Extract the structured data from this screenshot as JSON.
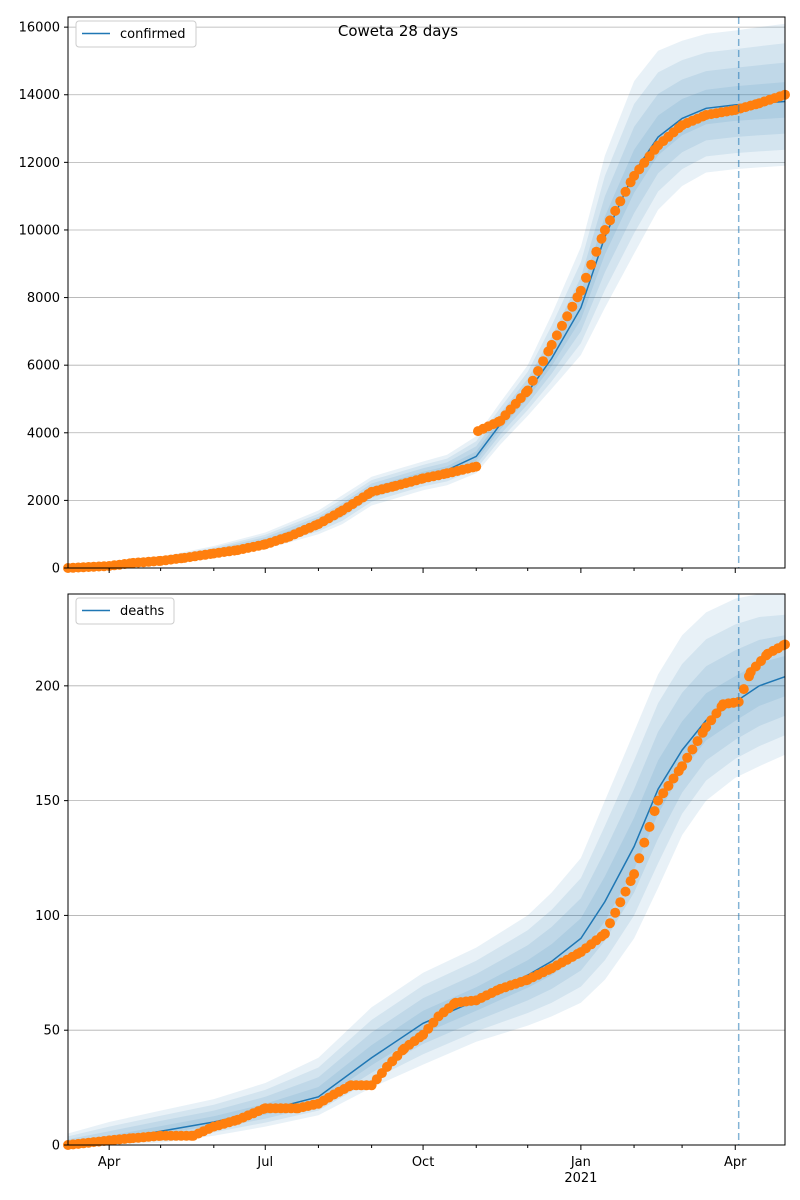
{
  "chart_data": [
    {
      "type": "line",
      "title": "Coweta 28 days",
      "legend": {
        "label": "confirmed",
        "placement": "top-left"
      },
      "ylim": [
        0,
        16300
      ],
      "yticks": [
        0,
        2000,
        4000,
        6000,
        8000,
        10000,
        12000,
        14000,
        16000
      ],
      "grid": "y",
      "forecast_start": "2021-04-03",
      "x_range": [
        "2020-03-08",
        "2021-04-30"
      ],
      "model": {
        "x": [
          "2020-03-08",
          "2020-04-01",
          "2020-05-01",
          "2020-06-01",
          "2020-07-01",
          "2020-08-01",
          "2020-08-15",
          "2020-09-01",
          "2020-10-01",
          "2020-10-15",
          "2020-11-01",
          "2020-11-15",
          "2020-12-01",
          "2020-12-15",
          "2021-01-01",
          "2021-01-15",
          "2021-02-01",
          "2021-02-15",
          "2021-03-01",
          "2021-03-15",
          "2021-04-01",
          "2021-04-15",
          "2021-04-30"
        ],
        "values": [
          0,
          80,
          230,
          480,
          780,
          1330,
          1700,
          2300,
          2750,
          2900,
          3300,
          4250,
          5200,
          6200,
          7700,
          9800,
          11700,
          12750,
          13300,
          13600,
          13700,
          13750,
          13800
        ],
        "band_outer_upper": [
          0,
          120,
          330,
          650,
          1050,
          1700,
          2150,
          2700,
          3150,
          3350,
          3900,
          4900,
          6000,
          7500,
          9500,
          12200,
          14400,
          15300,
          15600,
          15800,
          15900,
          16000,
          16100
        ],
        "band_outer_lower": [
          0,
          40,
          150,
          330,
          560,
          1000,
          1300,
          1850,
          2300,
          2450,
          2800,
          3650,
          4500,
          5300,
          6300,
          7700,
          9300,
          10600,
          11300,
          11700,
          11800,
          11850,
          11900
        ]
      },
      "observed": [
        {
          "x": "2020-03-08",
          "y": 0
        },
        {
          "x": "2020-04-01",
          "y": 60
        },
        {
          "x": "2020-04-15",
          "y": 150
        },
        {
          "x": "2020-05-01",
          "y": 210
        },
        {
          "x": "2020-05-15",
          "y": 300
        },
        {
          "x": "2020-06-01",
          "y": 430
        },
        {
          "x": "2020-06-15",
          "y": 530
        },
        {
          "x": "2020-07-01",
          "y": 700
        },
        {
          "x": "2020-07-15",
          "y": 930
        },
        {
          "x": "2020-08-01",
          "y": 1300
        },
        {
          "x": "2020-08-15",
          "y": 1700
        },
        {
          "x": "2020-09-01",
          "y": 2250
        },
        {
          "x": "2020-09-15",
          "y": 2430
        },
        {
          "x": "2020-10-01",
          "y": 2650
        },
        {
          "x": "2020-10-15",
          "y": 2800
        },
        {
          "x": "2020-11-01",
          "y": 3000
        },
        {
          "x": "2020-11-02",
          "y": 4050
        },
        {
          "x": "2020-11-15",
          "y": 4350
        },
        {
          "x": "2020-12-01",
          "y": 5250
        },
        {
          "x": "2020-12-15",
          "y": 6600
        },
        {
          "x": "2021-01-01",
          "y": 8200
        },
        {
          "x": "2021-01-15",
          "y": 10000
        },
        {
          "x": "2021-02-01",
          "y": 11600
        },
        {
          "x": "2021-02-15",
          "y": 12500
        },
        {
          "x": "2021-03-01",
          "y": 13100
        },
        {
          "x": "2021-03-15",
          "y": 13400
        },
        {
          "x": "2021-04-01",
          "y": 13550
        },
        {
          "x": "2021-04-15",
          "y": 13750
        },
        {
          "x": "2021-04-30",
          "y": 14000
        }
      ]
    },
    {
      "type": "line",
      "title": "",
      "legend": {
        "label": "deaths",
        "placement": "top-left"
      },
      "ylim": [
        0,
        240
      ],
      "yticks": [
        0,
        50,
        100,
        150,
        200
      ],
      "grid": "y",
      "forecast_start": "2021-04-03",
      "x_range": [
        "2020-03-08",
        "2021-04-30"
      ],
      "xticks": [
        {
          "date": "2020-04-01",
          "label": "Apr",
          "sub": ""
        },
        {
          "date": "2020-07-01",
          "label": "Jul",
          "sub": ""
        },
        {
          "date": "2020-10-01",
          "label": "Oct",
          "sub": ""
        },
        {
          "date": "2021-01-01",
          "label": "Jan",
          "sub": "2021"
        },
        {
          "date": "2021-04-01",
          "label": "Apr",
          "sub": ""
        }
      ],
      "model": {
        "x": [
          "2020-03-08",
          "2020-04-01",
          "2020-05-01",
          "2020-06-01",
          "2020-07-01",
          "2020-08-01",
          "2020-09-01",
          "2020-10-01",
          "2020-11-01",
          "2020-12-01",
          "2020-12-15",
          "2021-01-01",
          "2021-01-15",
          "2021-02-01",
          "2021-02-15",
          "2021-03-01",
          "2021-03-15",
          "2021-04-01",
          "2021-04-15",
          "2021-04-30"
        ],
        "values": [
          0,
          2,
          6,
          10,
          15,
          21,
          38,
          53,
          63,
          74,
          80,
          90,
          106,
          130,
          155,
          172,
          185,
          193,
          200,
          204
        ],
        "band_outer_upper": [
          5,
          10,
          15,
          20,
          27,
          38,
          60,
          75,
          86,
          100,
          110,
          125,
          150,
          180,
          205,
          222,
          232,
          238,
          240,
          240
        ],
        "band_outer_lower": [
          0,
          0,
          1,
          4,
          8,
          13,
          25,
          35,
          45,
          52,
          56,
          62,
          72,
          90,
          112,
          135,
          150,
          160,
          165,
          170
        ]
      },
      "observed": [
        {
          "x": "2020-03-08",
          "y": 0
        },
        {
          "x": "2020-04-01",
          "y": 2
        },
        {
          "x": "2020-04-15",
          "y": 3
        },
        {
          "x": "2020-05-01",
          "y": 4
        },
        {
          "x": "2020-05-20",
          "y": 4
        },
        {
          "x": "2020-06-01",
          "y": 8
        },
        {
          "x": "2020-06-15",
          "y": 11
        },
        {
          "x": "2020-07-01",
          "y": 16
        },
        {
          "x": "2020-07-20",
          "y": 16
        },
        {
          "x": "2020-08-01",
          "y": 18
        },
        {
          "x": "2020-08-10",
          "y": 22
        },
        {
          "x": "2020-08-20",
          "y": 26
        },
        {
          "x": "2020-09-01",
          "y": 26
        },
        {
          "x": "2020-09-10",
          "y": 34
        },
        {
          "x": "2020-09-20",
          "y": 42
        },
        {
          "x": "2020-10-01",
          "y": 48
        },
        {
          "x": "2020-10-10",
          "y": 56
        },
        {
          "x": "2020-10-20",
          "y": 62
        },
        {
          "x": "2020-11-01",
          "y": 63
        },
        {
          "x": "2020-11-15",
          "y": 68
        },
        {
          "x": "2020-12-01",
          "y": 72
        },
        {
          "x": "2020-12-15",
          "y": 77
        },
        {
          "x": "2021-01-01",
          "y": 84
        },
        {
          "x": "2021-01-15",
          "y": 92
        },
        {
          "x": "2021-02-01",
          "y": 118
        },
        {
          "x": "2021-02-15",
          "y": 150
        },
        {
          "x": "2021-03-01",
          "y": 165
        },
        {
          "x": "2021-03-15",
          "y": 182
        },
        {
          "x": "2021-03-25",
          "y": 192
        },
        {
          "x": "2021-04-03",
          "y": 193
        },
        {
          "x": "2021-04-10",
          "y": 206
        },
        {
          "x": "2021-04-20",
          "y": 214
        },
        {
          "x": "2021-04-30",
          "y": 218
        }
      ]
    }
  ]
}
